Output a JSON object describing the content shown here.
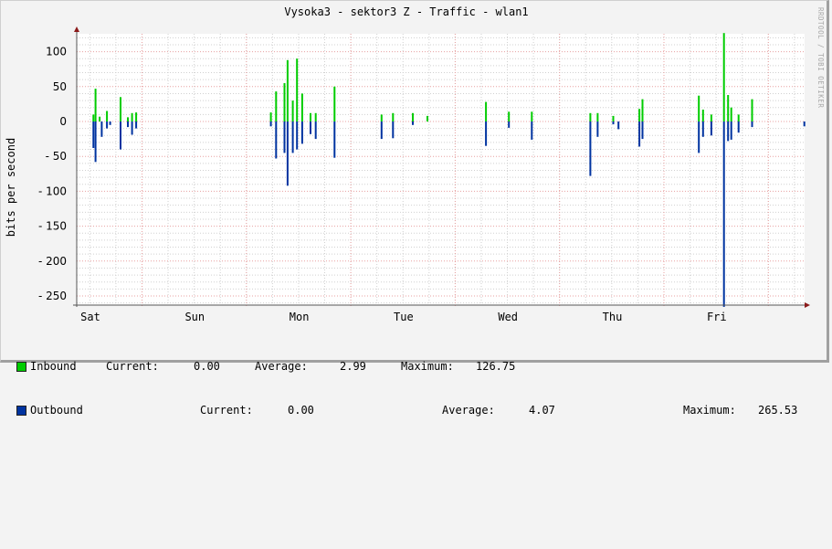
{
  "title": "Vysoka3 - sektor3 Z - Traffic - wlan1",
  "watermark": "RRDTOOL / TOBI OETIKER",
  "colors": {
    "inbound": "#00cc00",
    "outbound": "#0033a0",
    "major_grid": "#e8a0a0",
    "minor_grid": "#d0d0d0",
    "axis": "#555555",
    "arrow": "#8b1a1a",
    "background": "#f3f3f3",
    "canvas": "#ffffff"
  },
  "legend": {
    "inbound": {
      "label": "Inbound",
      "current_label": "Current:",
      "current": "0.00",
      "average_label": "Average:",
      "average": "2.99",
      "maximum_label": "Maximum:",
      "maximum": "126.75"
    },
    "outbound": {
      "label": "Outbound",
      "current_label": "Current:",
      "current": "0.00",
      "average_label": "Average:",
      "average": "4.07",
      "maximum_label": "Maximum:",
      "maximum": "265.53"
    }
  },
  "chart_data": {
    "type": "area",
    "title": "Vysoka3 - sektor3 Z - Traffic - wlan1",
    "xlabel": "",
    "ylabel": "bits per second",
    "ylim": [
      -265,
      125
    ],
    "yticks": [
      100,
      50,
      0,
      -50,
      -100,
      -150,
      -200,
      -250
    ],
    "ytick_labels": [
      "100",
      "50",
      "0",
      "- 50",
      "- 100",
      "- 150",
      "- 200",
      "- 250"
    ],
    "categories": [
      "Sat",
      "Sun",
      "Mon",
      "Tue",
      "Wed",
      "Thu",
      "Fri"
    ],
    "grid": true,
    "legend_position": "bottom",
    "series": [
      {
        "name": "Inbound",
        "color": "#00cc00",
        "direction": "positive",
        "spikes": [
          {
            "day": "Sat",
            "offset": 0.02,
            "value": 10
          },
          {
            "day": "Sat",
            "offset": 0.04,
            "value": 47
          },
          {
            "day": "Sat",
            "offset": 0.08,
            "value": 7
          },
          {
            "day": "Sat",
            "offset": 0.15,
            "value": 15
          },
          {
            "day": "Sat",
            "offset": 0.28,
            "value": 35
          },
          {
            "day": "Sat",
            "offset": 0.35,
            "value": 6
          },
          {
            "day": "Sat",
            "offset": 0.39,
            "value": 12
          },
          {
            "day": "Sat",
            "offset": 0.43,
            "value": 13
          },
          {
            "day": "Mon",
            "offset": -0.28,
            "value": 13
          },
          {
            "day": "Mon",
            "offset": -0.23,
            "value": 43
          },
          {
            "day": "Mon",
            "offset": -0.15,
            "value": 55
          },
          {
            "day": "Mon",
            "offset": -0.12,
            "value": 88
          },
          {
            "day": "Mon",
            "offset": -0.07,
            "value": 30
          },
          {
            "day": "Mon",
            "offset": -0.03,
            "value": 90
          },
          {
            "day": "Mon",
            "offset": 0.02,
            "value": 40
          },
          {
            "day": "Mon",
            "offset": 0.1,
            "value": 12
          },
          {
            "day": "Mon",
            "offset": 0.15,
            "value": 12
          },
          {
            "day": "Mon",
            "offset": 0.33,
            "value": 50
          },
          {
            "day": "Tue",
            "offset": -0.22,
            "value": 10
          },
          {
            "day": "Tue",
            "offset": -0.11,
            "value": 12
          },
          {
            "day": "Tue",
            "offset": 0.08,
            "value": 12
          },
          {
            "day": "Tue",
            "offset": 0.22,
            "value": 8
          },
          {
            "day": "Wed",
            "offset": -0.22,
            "value": 28
          },
          {
            "day": "Wed",
            "offset": 0.0,
            "value": 14
          },
          {
            "day": "Wed",
            "offset": 0.22,
            "value": 14
          },
          {
            "day": "Thu",
            "offset": -0.22,
            "value": 12
          },
          {
            "day": "Thu",
            "offset": -0.15,
            "value": 12
          },
          {
            "day": "Thu",
            "offset": 0.0,
            "value": 8
          },
          {
            "day": "Thu",
            "offset": 0.25,
            "value": 18
          },
          {
            "day": "Thu",
            "offset": 0.28,
            "value": 32
          },
          {
            "day": "Fri",
            "offset": -0.18,
            "value": 37
          },
          {
            "day": "Fri",
            "offset": -0.14,
            "value": 17
          },
          {
            "day": "Fri",
            "offset": -0.06,
            "value": 10
          },
          {
            "day": "Fri",
            "offset": 0.06,
            "value": 126.75
          },
          {
            "day": "Fri",
            "offset": 0.1,
            "value": 38
          },
          {
            "day": "Fri",
            "offset": 0.13,
            "value": 20
          },
          {
            "day": "Fri",
            "offset": 0.2,
            "value": 10
          },
          {
            "day": "Fri",
            "offset": 0.33,
            "value": 32
          }
        ]
      },
      {
        "name": "Outbound",
        "color": "#0033a0",
        "direction": "negative",
        "spikes": [
          {
            "day": "Sat",
            "offset": 0.02,
            "value": -38
          },
          {
            "day": "Sat",
            "offset": 0.04,
            "value": -58
          },
          {
            "day": "Sat",
            "offset": 0.1,
            "value": -22
          },
          {
            "day": "Sat",
            "offset": 0.15,
            "value": -10
          },
          {
            "day": "Sat",
            "offset": 0.18,
            "value": -5
          },
          {
            "day": "Sat",
            "offset": 0.28,
            "value": -40
          },
          {
            "day": "Sat",
            "offset": 0.35,
            "value": -8
          },
          {
            "day": "Sat",
            "offset": 0.39,
            "value": -19
          },
          {
            "day": "Sat",
            "offset": 0.43,
            "value": -10
          },
          {
            "day": "Mon",
            "offset": -0.28,
            "value": -7
          },
          {
            "day": "Mon",
            "offset": -0.23,
            "value": -53
          },
          {
            "day": "Mon",
            "offset": -0.15,
            "value": -45
          },
          {
            "day": "Mon",
            "offset": -0.12,
            "value": -92
          },
          {
            "day": "Mon",
            "offset": -0.07,
            "value": -45
          },
          {
            "day": "Mon",
            "offset": -0.03,
            "value": -40
          },
          {
            "day": "Mon",
            "offset": 0.02,
            "value": -32
          },
          {
            "day": "Mon",
            "offset": 0.1,
            "value": -18
          },
          {
            "day": "Mon",
            "offset": 0.15,
            "value": -25
          },
          {
            "day": "Mon",
            "offset": 0.33,
            "value": -52
          },
          {
            "day": "Tue",
            "offset": -0.22,
            "value": -25
          },
          {
            "day": "Tue",
            "offset": -0.11,
            "value": -24
          },
          {
            "day": "Tue",
            "offset": 0.08,
            "value": -5
          },
          {
            "day": "Wed",
            "offset": -0.22,
            "value": -35
          },
          {
            "day": "Wed",
            "offset": 0.0,
            "value": -9
          },
          {
            "day": "Wed",
            "offset": 0.22,
            "value": -26
          },
          {
            "day": "Thu",
            "offset": -0.22,
            "value": -78
          },
          {
            "day": "Thu",
            "offset": -0.15,
            "value": -22
          },
          {
            "day": "Thu",
            "offset": 0.0,
            "value": -4
          },
          {
            "day": "Thu",
            "offset": 0.05,
            "value": -11
          },
          {
            "day": "Thu",
            "offset": 0.25,
            "value": -36
          },
          {
            "day": "Thu",
            "offset": 0.28,
            "value": -25
          },
          {
            "day": "Fri",
            "offset": -0.18,
            "value": -45
          },
          {
            "day": "Fri",
            "offset": -0.14,
            "value": -22
          },
          {
            "day": "Fri",
            "offset": -0.06,
            "value": -20
          },
          {
            "day": "Fri",
            "offset": 0.06,
            "value": -265.53
          },
          {
            "day": "Fri",
            "offset": 0.1,
            "value": -28
          },
          {
            "day": "Fri",
            "offset": 0.13,
            "value": -26
          },
          {
            "day": "Fri",
            "offset": 0.2,
            "value": -16
          },
          {
            "day": "Fri",
            "offset": 0.33,
            "value": -8
          },
          {
            "day": "Fri",
            "offset": 0.83,
            "value": -7
          }
        ]
      }
    ]
  }
}
